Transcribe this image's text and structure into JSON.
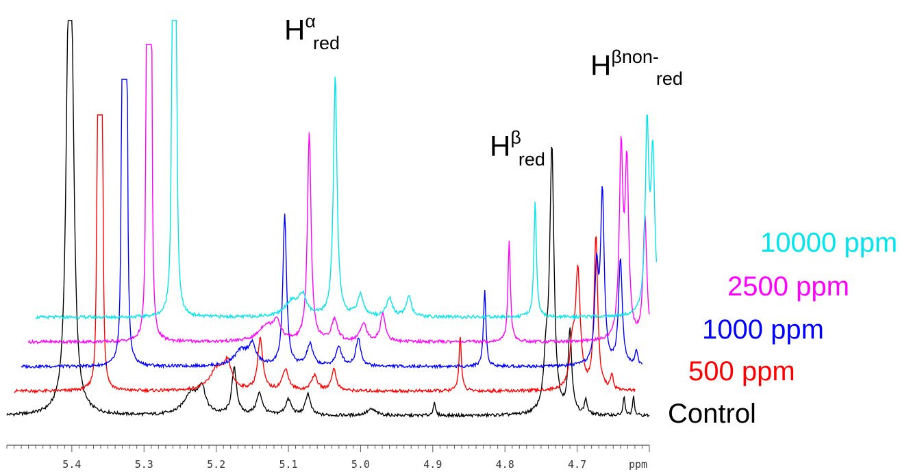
{
  "chart_data": {
    "type": "line",
    "xlabel": "ppm",
    "x_reversed": true,
    "xlim": [
      5.49,
      4.6
    ],
    "x_ticks": [
      5.4,
      5.3,
      5.2,
      5.1,
      5.0,
      4.9,
      4.8,
      4.7
    ],
    "x_tick_labels": [
      "5.4",
      "5.3",
      "5.2",
      "5.1",
      "5.0",
      "4.9",
      "4.8",
      "4.7"
    ],
    "stack": "offset",
    "peak_annotations": [
      {
        "base": "H",
        "sup": "α",
        "sub": "red",
        "x": 5.11
      },
      {
        "base": "H",
        "sup": "β",
        "sub": "red",
        "x": 4.8
      },
      {
        "base": "H",
        "sup": "βnon-",
        "sub": "red",
        "x": 4.67
      }
    ],
    "series": [
      {
        "name": "Control",
        "color": "#000000",
        "x_shift": 0.0,
        "baseline": 0.0,
        "x_range": [
          5.49,
          4.6
        ],
        "peaks": [
          [
            5.405,
            1.0,
            0.004
          ],
          [
            5.4,
            0.95,
            0.004
          ],
          [
            5.235,
            0.07,
            0.012
          ],
          [
            5.22,
            0.08,
            0.006
          ],
          [
            5.175,
            0.15,
            0.004
          ],
          [
            5.14,
            0.07,
            0.005
          ],
          [
            5.1,
            0.05,
            0.005
          ],
          [
            5.073,
            0.07,
            0.004
          ],
          [
            4.985,
            0.02,
            0.008
          ],
          [
            4.898,
            0.04,
            0.002
          ],
          [
            4.735,
            0.85,
            0.0035
          ],
          [
            4.743,
            0.15,
            0.004
          ],
          [
            4.71,
            0.27,
            0.003
          ],
          [
            4.688,
            0.05,
            0.002
          ],
          [
            4.635,
            0.06,
            0.0015
          ],
          [
            4.622,
            0.06,
            0.0015
          ]
        ]
      },
      {
        "name": "500 ppm",
        "color": "#ff0000",
        "x_shift": -0.026,
        "baseline": 0.15,
        "x_range": [
          5.49,
          4.63
        ],
        "peaks": [
          [
            5.4,
            1.2,
            0.0012
          ],
          [
            5.397,
            1.2,
            0.0012
          ],
          [
            5.394,
            1.2,
            0.0012
          ],
          [
            5.235,
            0.07,
            0.012
          ],
          [
            5.22,
            0.08,
            0.006
          ],
          [
            5.175,
            0.17,
            0.004
          ],
          [
            5.14,
            0.07,
            0.005
          ],
          [
            5.1,
            0.05,
            0.005
          ],
          [
            5.073,
            0.07,
            0.004
          ],
          [
            4.898,
            0.18,
            0.002
          ],
          [
            4.735,
            0.38,
            0.004
          ],
          [
            4.743,
            0.12,
            0.004
          ],
          [
            4.71,
            0.5,
            0.003
          ],
          [
            4.688,
            0.05,
            0.002
          ],
          [
            4.64,
            0.05,
            0.0015
          ],
          [
            4.625,
            0.05,
            0.0015
          ]
        ]
      },
      {
        "name": "1000 ppm",
        "color": "#0000ff",
        "x_shift": -0.05,
        "baseline": 0.3,
        "x_range": [
          5.49,
          4.63
        ],
        "peaks": [
          [
            5.4,
            1.4,
            0.0012
          ],
          [
            5.397,
            1.4,
            0.0012
          ],
          [
            5.394,
            1.4,
            0.0012
          ],
          [
            5.235,
            0.05,
            0.012
          ],
          [
            5.22,
            0.06,
            0.006
          ],
          [
            5.175,
            0.49,
            0.003
          ],
          [
            5.14,
            0.07,
            0.005
          ],
          [
            5.1,
            0.06,
            0.005
          ],
          [
            5.073,
            0.09,
            0.004
          ],
          [
            4.898,
            0.25,
            0.002
          ],
          [
            4.743,
            0.3,
            0.003
          ],
          [
            4.735,
            0.55,
            0.003
          ],
          [
            4.71,
            0.35,
            0.003
          ],
          [
            4.688,
            0.05,
            0.002
          ],
          [
            4.635,
            0.08,
            0.0015
          ],
          [
            4.625,
            0.08,
            0.0015
          ]
        ]
      },
      {
        "name": "2500 ppm",
        "color": "#ff00ff",
        "x_shift": -0.074,
        "baseline": 0.45,
        "x_range": [
          5.49,
          4.63
        ],
        "peaks": [
          [
            5.4,
            1.4,
            0.0012
          ],
          [
            5.397,
            1.4,
            0.0012
          ],
          [
            5.394,
            1.4,
            0.0012
          ],
          [
            5.235,
            0.05,
            0.012
          ],
          [
            5.22,
            0.06,
            0.006
          ],
          [
            5.175,
            0.68,
            0.003
          ],
          [
            5.14,
            0.07,
            0.005
          ],
          [
            5.1,
            0.06,
            0.005
          ],
          [
            5.073,
            0.09,
            0.004
          ],
          [
            4.898,
            0.33,
            0.002
          ],
          [
            4.743,
            0.6,
            0.003
          ],
          [
            4.735,
            0.55,
            0.003
          ],
          [
            4.71,
            0.4,
            0.003
          ],
          [
            4.688,
            0.05,
            0.002
          ],
          [
            4.635,
            0.08,
            0.0015
          ],
          [
            4.625,
            0.08,
            0.0015
          ]
        ]
      },
      {
        "name": "10000 ppm",
        "color": "#00e5ee",
        "x_shift": -0.1,
        "baseline": 0.6,
        "x_range": [
          5.49,
          4.63
        ],
        "peaks": [
          [
            5.4,
            1.5,
            0.0015
          ],
          [
            5.396,
            1.5,
            0.0015
          ],
          [
            5.235,
            0.05,
            0.012
          ],
          [
            5.22,
            0.06,
            0.006
          ],
          [
            5.175,
            0.78,
            0.003
          ],
          [
            5.14,
            0.07,
            0.005
          ],
          [
            5.1,
            0.06,
            0.005
          ],
          [
            5.073,
            0.07,
            0.004
          ],
          [
            4.898,
            0.38,
            0.002
          ],
          [
            4.743,
            0.6,
            0.003
          ],
          [
            4.735,
            0.5,
            0.003
          ],
          [
            4.71,
            0.7,
            0.003
          ],
          [
            4.688,
            0.05,
            0.002
          ],
          [
            4.635,
            0.09,
            0.0015
          ],
          [
            4.625,
            0.09,
            0.0015
          ]
        ]
      }
    ]
  }
}
